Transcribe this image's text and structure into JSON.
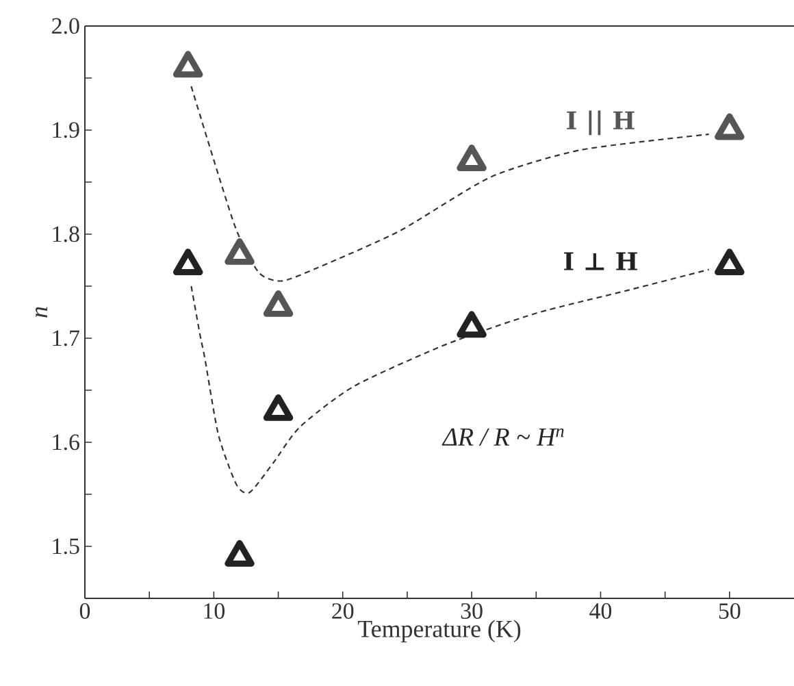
{
  "chart_data": {
    "type": "scatter",
    "xlabel": "Temperature (K)",
    "ylabel": "n",
    "xlim": [
      0,
      55
    ],
    "ylim": [
      1.45,
      2.0
    ],
    "xticks": [
      0,
      {
        "value": 5,
        "label": null
      },
      10,
      {
        "value": 15,
        "label": null
      },
      20,
      {
        "value": 25,
        "label": null
      },
      30,
      {
        "value": 35,
        "label": null
      },
      40,
      {
        "value": 45,
        "label": null
      },
      50
    ],
    "yticks": [
      1.5,
      {
        "value": 1.55,
        "label": null
      },
      1.6,
      {
        "value": 1.65,
        "label": null
      },
      1.7,
      {
        "value": 1.75,
        "label": null
      },
      1.8,
      {
        "value": 1.85,
        "label": null
      },
      1.9,
      {
        "value": 1.95,
        "label": null
      },
      {
        "value": 2.0,
        "label": "2.0"
      }
    ],
    "marker": "triangle",
    "grid": false,
    "annotations": [
      "ΔR / R ~ H$^{n}$"
    ],
    "series": [
      {
        "name": "I || H",
        "color": "#555555",
        "x": [
          8,
          12,
          15,
          30,
          50
        ],
        "values": [
          1.96,
          1.78,
          1.73,
          1.87,
          1.9
        ]
      },
      {
        "name": "I ⊥ H",
        "color": "#222222",
        "x": [
          8,
          12,
          15,
          30,
          50
        ],
        "values": [
          1.77,
          1.49,
          1.63,
          1.71,
          1.77
        ]
      },
      {
        "type": "line",
        "marker": "none",
        "line_style": "dashed",
        "color": "#333333",
        "x": [
          8.25,
          11.6,
          13.5,
          15.3,
          18.1,
          24.4,
          31.5,
          38.5,
          48.4
        ],
        "values": [
          1.942,
          1.809,
          1.763,
          1.755,
          1.768,
          1.803,
          1.855,
          1.881,
          1.896
        ]
      },
      {
        "type": "line",
        "marker": "none",
        "line_style": "dashed",
        "color": "#333333",
        "x": [
          8.25,
          8.95,
          9.3,
          10.36,
          11.77,
          12.8,
          14.6,
          16.7,
          20.9,
          28.0,
          35.0,
          42.1,
          48.4
        ],
        "values": [
          1.75,
          1.702,
          1.681,
          1.607,
          1.559,
          1.552,
          1.58,
          1.615,
          1.654,
          1.694,
          1.724,
          1.746,
          1.766
        ]
      }
    ]
  }
}
